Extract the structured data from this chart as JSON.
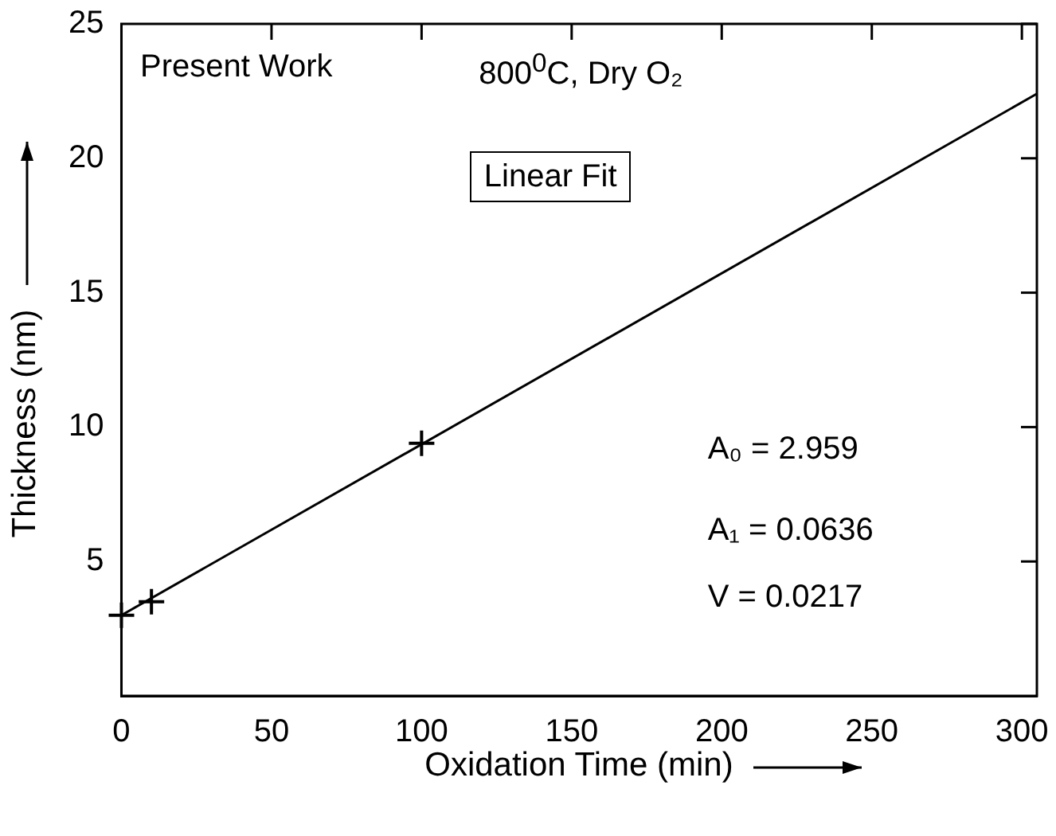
{
  "chart_data": {
    "type": "scatter",
    "xlabel": "Oxidation Time (min)",
    "ylabel": "Thickness (nm)",
    "xlim": [
      0,
      305
    ],
    "xticks": [
      0,
      50,
      100,
      150,
      200,
      250,
      300
    ],
    "ylim": [
      0,
      25
    ],
    "yticks": [
      5,
      10,
      15,
      20,
      25
    ],
    "grid": false,
    "legend": false,
    "marker": "cross",
    "series": [
      {
        "type": "scatter",
        "color": "#000000",
        "x": [
          0,
          10,
          100
        ],
        "values": [
          3.0,
          3.5,
          9.4
        ]
      },
      {
        "type": "line",
        "color": "#000000",
        "x": [
          0,
          305
        ],
        "values": [
          3.0,
          22.4
        ],
        "marker": "none",
        "line_style": "solid"
      }
    ],
    "annotations": [
      "Present Work",
      "800$^{0}$C, Dry O₂",
      "Linear Fit",
      "A₀ = 2.959",
      "A₁ = 0.0636",
      "V = 0.0217"
    ]
  }
}
